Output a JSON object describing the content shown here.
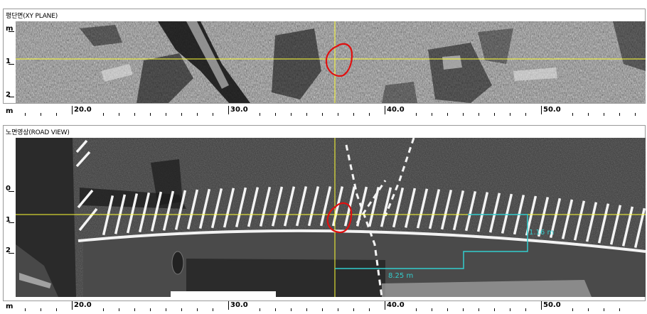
{
  "xy_panel": {
    "title": "평단면(XY PLANE)",
    "y_unit": "m",
    "y_ticks": [
      "1",
      "2"
    ]
  },
  "road_panel": {
    "title": "노면영상(ROAD VIEW)",
    "y_ticks": [
      "0",
      "1",
      "2"
    ],
    "distance_horizontal": "8.25 m",
    "distance_vertical": "1.16 m"
  },
  "x_axis": {
    "unit": "m",
    "labels": [
      "20.0",
      "30.0",
      "40.0",
      "50.0"
    ]
  },
  "colors": {
    "crosshair": "#ffff33",
    "marker_circle": "#e01010",
    "measure_line": "#33cccc"
  }
}
